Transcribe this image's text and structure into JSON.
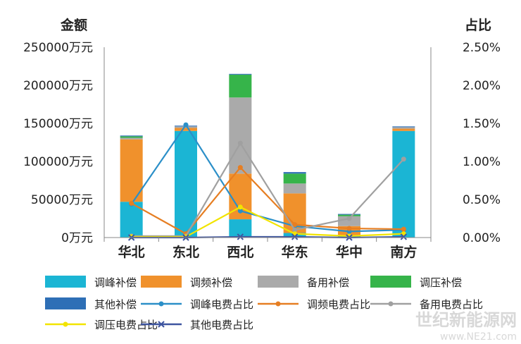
{
  "chart_data": {
    "type": "bar",
    "stacked": true,
    "categories": [
      "华北",
      "东北",
      "西北",
      "华东",
      "华中",
      "南方"
    ],
    "y_axis_left": {
      "title": "金额",
      "ylim": [
        0,
        250000
      ],
      "ticks": [
        "0万元",
        "50000万元",
        "100000万元",
        "150000万元",
        "200000万元",
        "250000万元"
      ]
    },
    "y_axis_right": {
      "title": "占比",
      "ylim": [
        0,
        2.5
      ],
      "ticks": [
        "0.00%",
        "0.50%",
        "1.00%",
        "1.50%",
        "2.00%",
        "2.50%"
      ]
    },
    "bar_series": [
      {
        "name": "调峰补偿",
        "color": "#1bb5d4",
        "values": [
          47000,
          140000,
          24000,
          6000,
          3000,
          140000
        ]
      },
      {
        "name": "调频补偿",
        "color": "#f0912c",
        "values": [
          82000,
          4000,
          60000,
          52000,
          12000,
          3000
        ]
      },
      {
        "name": "备用补偿",
        "color": "#aaaaaa",
        "values": [
          2000,
          2000,
          100000,
          13000,
          13000,
          2000
        ]
      },
      {
        "name": "调压补偿",
        "color": "#36b44a",
        "values": [
          2000,
          0,
          30000,
          13000,
          2000,
          0
        ]
      },
      {
        "name": "其他补偿",
        "color": "#2e6fb6",
        "values": [
          1000,
          1000,
          1000,
          2000,
          1000,
          1000
        ]
      }
    ],
    "line_series": [
      {
        "name": "调峰电费占比",
        "color": "#2b8fc8",
        "marker": "dot",
        "values": [
          0.44,
          1.48,
          0.35,
          0.15,
          0.08,
          0.1
        ]
      },
      {
        "name": "调频电费占比",
        "color": "#e67e22",
        "marker": "dot",
        "values": [
          0.45,
          0.05,
          0.92,
          0.17,
          0.12,
          0.11
        ]
      },
      {
        "name": "备用电费占比",
        "color": "#a0a0a0",
        "marker": "dot",
        "values": [
          0.02,
          0.02,
          1.24,
          0.1,
          0.25,
          1.03
        ]
      },
      {
        "name": "调压电费占比",
        "color": "#f2e400",
        "marker": "dot",
        "values": [
          0.01,
          0.01,
          0.4,
          0.05,
          0.02,
          0.05
        ]
      },
      {
        "name": "其他电费占比",
        "color": "#3e55a0",
        "marker": "x",
        "values": [
          0.0,
          0.0,
          0.01,
          0.01,
          0.0,
          0.01
        ]
      }
    ],
    "legend_position": "bottom",
    "grid": false
  },
  "watermark": {
    "title": "世纪新能源网",
    "url": "www.NE21.com"
  }
}
